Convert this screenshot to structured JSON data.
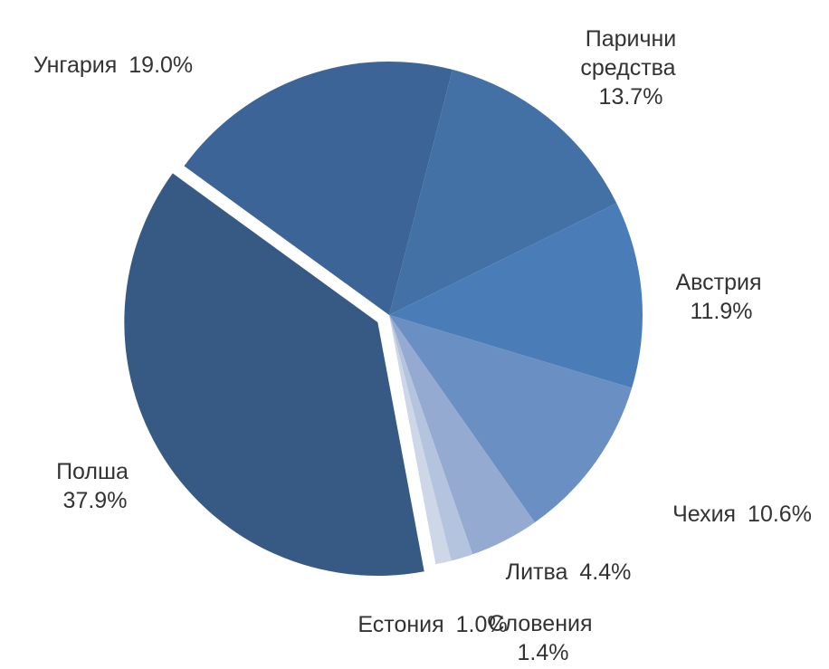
{
  "chart_data": {
    "type": "pie",
    "categories": [
      "Унгария",
      "Парични средства",
      "Австрия",
      "Чехия",
      "Литва",
      "Словения",
      "Естония",
      "Полша"
    ],
    "values": [
      19.0,
      13.7,
      11.9,
      10.6,
      4.4,
      1.4,
      1.0,
      37.9
    ],
    "value_labels": [
      "19.0%",
      "13.7%",
      "11.9%",
      "10.6%",
      "4.4%",
      "1.4%",
      "1.0%",
      "37.9%"
    ],
    "colors": [
      "#3d6496",
      "#4371a6",
      "#4a7db8",
      "#6a8fc2",
      "#94aad0",
      "#b4c4de",
      "#cdd7e8",
      "#375a84"
    ]
  }
}
